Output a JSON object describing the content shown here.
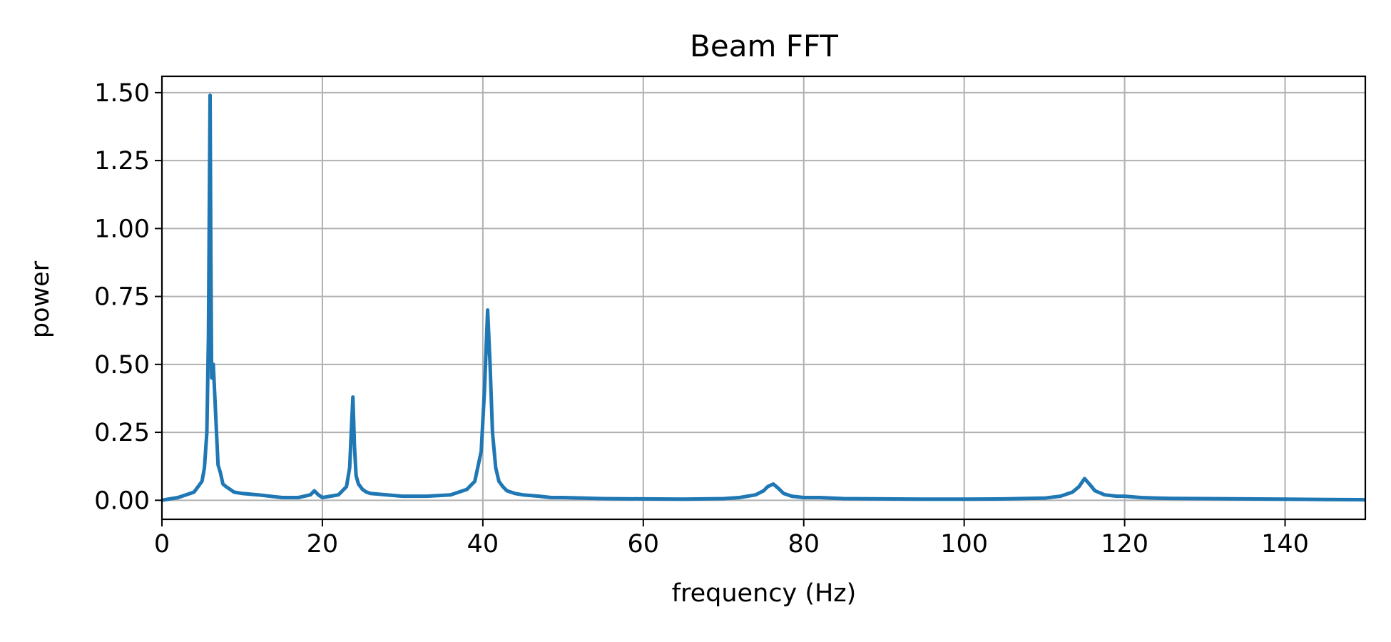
{
  "chart_data": {
    "type": "line",
    "title": "Beam FFT",
    "xlabel": "frequency (Hz)",
    "ylabel": "power",
    "xlim": [
      0,
      150
    ],
    "ylim": [
      -0.07,
      1.56
    ],
    "xticks": [
      0,
      20,
      40,
      60,
      80,
      100,
      120,
      140
    ],
    "xtick_labels": [
      "0",
      "20",
      "40",
      "60",
      "80",
      "100",
      "120",
      "140"
    ],
    "yticks": [
      0,
      0.25,
      0.5,
      0.75,
      1.0,
      1.25,
      1.5
    ],
    "ytick_labels": [
      "0.00",
      "0.25",
      "0.50",
      "0.75",
      "1.00",
      "1.25",
      "1.50"
    ],
    "grid": true,
    "color": "#1f77b4",
    "series": [
      {
        "x": [
          0,
          1,
          2,
          3,
          4,
          4.5,
          5,
          5.3,
          5.6,
          5.8,
          6.0,
          6.1,
          6.2,
          6.4,
          6.6,
          6.8,
          7.0,
          7.3,
          7.6,
          8,
          8.5,
          9,
          10,
          12,
          15,
          17,
          18.5,
          19,
          19.5,
          20,
          21,
          22,
          23,
          23.4,
          23.6,
          23.8,
          24.0,
          24.2,
          24.5,
          25,
          25.5,
          26,
          28,
          30,
          33,
          36,
          38,
          39,
          39.8,
          40.2,
          40.6,
          40.9,
          41.2,
          41.6,
          42,
          42.5,
          43,
          44,
          45,
          47,
          48.5,
          50,
          55,
          60,
          65,
          70,
          72,
          74,
          75,
          75.5,
          76.2,
          76.8,
          77.5,
          78.5,
          80,
          82,
          85,
          90,
          95,
          100,
          105,
          110,
          112,
          113.5,
          114.3,
          115,
          115.6,
          116.3,
          117.5,
          119,
          120,
          122,
          124,
          126,
          130,
          135,
          140,
          145,
          150
        ],
        "y": [
          0.0,
          0.005,
          0.01,
          0.02,
          0.03,
          0.05,
          0.07,
          0.12,
          0.25,
          0.6,
          1.49,
          0.9,
          0.45,
          0.5,
          0.38,
          0.25,
          0.13,
          0.1,
          0.06,
          0.05,
          0.04,
          0.03,
          0.025,
          0.02,
          0.01,
          0.01,
          0.02,
          0.035,
          0.02,
          0.01,
          0.015,
          0.02,
          0.05,
          0.12,
          0.25,
          0.38,
          0.2,
          0.09,
          0.06,
          0.04,
          0.03,
          0.025,
          0.02,
          0.015,
          0.015,
          0.02,
          0.04,
          0.07,
          0.18,
          0.4,
          0.7,
          0.5,
          0.25,
          0.12,
          0.07,
          0.05,
          0.035,
          0.025,
          0.02,
          0.015,
          0.01,
          0.01,
          0.006,
          0.005,
          0.004,
          0.006,
          0.01,
          0.02,
          0.035,
          0.05,
          0.06,
          0.045,
          0.025,
          0.015,
          0.01,
          0.01,
          0.006,
          0.005,
          0.004,
          0.004,
          0.005,
          0.008,
          0.015,
          0.03,
          0.05,
          0.08,
          0.06,
          0.035,
          0.02,
          0.015,
          0.015,
          0.01,
          0.008,
          0.007,
          0.006,
          0.005,
          0.004,
          0.003,
          0.002
        ]
      }
    ]
  }
}
